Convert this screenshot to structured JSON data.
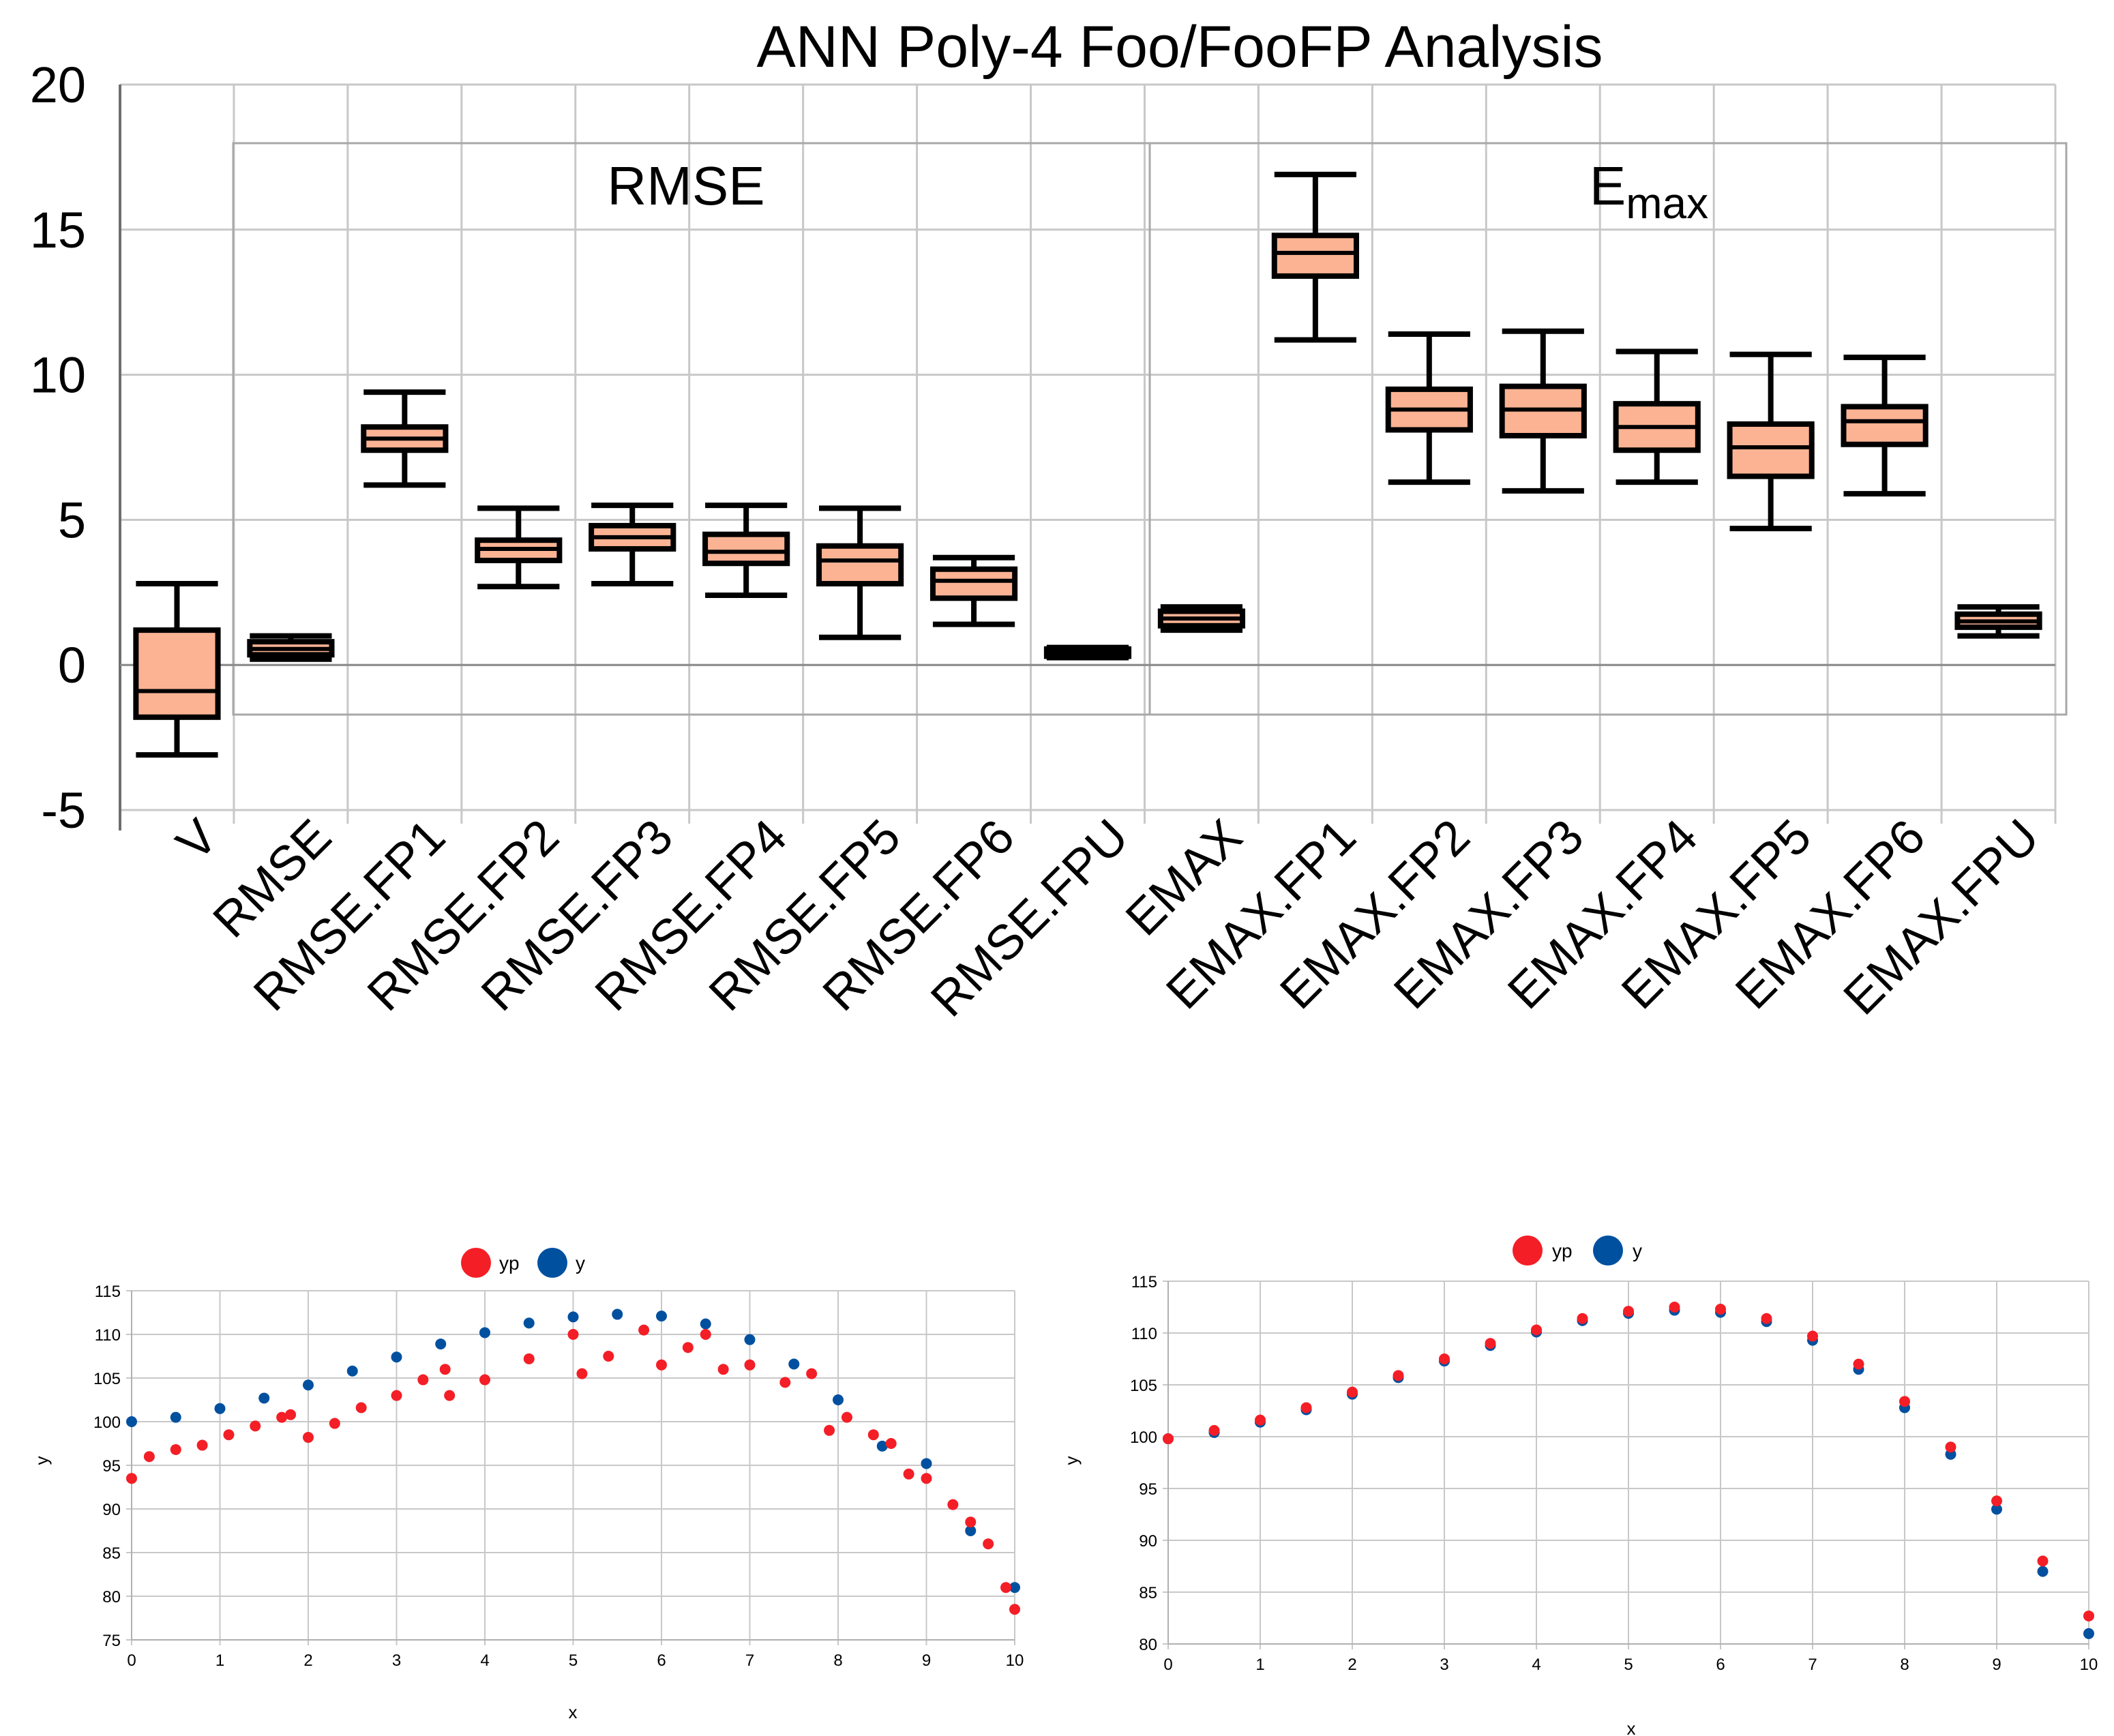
{
  "chart_data": [
    {
      "type": "box",
      "title": "ANN Poly-4 Foo/FooFP Analysis",
      "ylim": [
        -5,
        20
      ],
      "yticks": [
        -5,
        0,
        5,
        10,
        15,
        20
      ],
      "groups": [
        {
          "label": "RMSE",
          "sub": ""
        },
        {
          "label": "E",
          "sub": "max"
        }
      ],
      "box_fill": "#fbb394",
      "categories": [
        "V",
        "RMSE",
        "RMSE.FP1",
        "RMSE.FP2",
        "RMSE.FP3",
        "RMSE.FP4",
        "RMSE.FP5",
        "RMSE.FP6",
        "RMSE.FPU",
        "EMAX",
        "EMAX.FP1",
        "EMAX.FP2",
        "EMAX.FP3",
        "EMAX.FP4",
        "EMAX.FP5",
        "EMAX.FP6",
        "EMAX.FPU"
      ],
      "boxes": [
        {
          "min": -3.1,
          "q1": -1.8,
          "median": -0.9,
          "q3": 1.2,
          "max": 2.8
        },
        {
          "min": 0.2,
          "q1": 0.35,
          "median": 0.55,
          "q3": 0.8,
          "max": 1.0
        },
        {
          "min": 6.2,
          "q1": 7.4,
          "median": 7.8,
          "q3": 8.2,
          "max": 9.4
        },
        {
          "min": 2.7,
          "q1": 3.6,
          "median": 4.0,
          "q3": 4.3,
          "max": 5.4
        },
        {
          "min": 2.8,
          "q1": 4.0,
          "median": 4.4,
          "q3": 4.8,
          "max": 5.5
        },
        {
          "min": 2.4,
          "q1": 3.5,
          "median": 3.9,
          "q3": 4.5,
          "max": 5.5
        },
        {
          "min": 0.95,
          "q1": 2.8,
          "median": 3.6,
          "q3": 4.1,
          "max": 5.4
        },
        {
          "min": 1.4,
          "q1": 2.3,
          "median": 2.9,
          "q3": 3.3,
          "max": 3.7
        },
        {
          "min": 0.25,
          "q1": 0.3,
          "median": 0.45,
          "q3": 0.55,
          "max": 0.6
        },
        {
          "min": 1.2,
          "q1": 1.35,
          "median": 1.6,
          "q3": 1.85,
          "max": 2.0
        },
        {
          "min": 11.2,
          "q1": 13.4,
          "median": 14.2,
          "q3": 14.8,
          "max": 16.9
        },
        {
          "min": 6.3,
          "q1": 8.1,
          "median": 8.8,
          "q3": 9.5,
          "max": 11.4
        },
        {
          "min": 6.0,
          "q1": 7.9,
          "median": 8.8,
          "q3": 9.6,
          "max": 11.5
        },
        {
          "min": 6.3,
          "q1": 7.4,
          "median": 8.2,
          "q3": 9.0,
          "max": 10.8
        },
        {
          "min": 4.7,
          "q1": 6.5,
          "median": 7.5,
          "q3": 8.3,
          "max": 10.7
        },
        {
          "min": 5.9,
          "q1": 7.6,
          "median": 8.4,
          "q3": 8.9,
          "max": 10.6
        },
        {
          "min": 1.0,
          "q1": 1.3,
          "median": 1.5,
          "q3": 1.75,
          "max": 2.0
        }
      ]
    },
    {
      "type": "scatter",
      "title": "",
      "xlabel": "x",
      "ylabel": "y",
      "xlim": [
        0,
        10
      ],
      "ylim": [
        75,
        115
      ],
      "xticks": [
        0,
        1,
        2,
        3,
        4,
        5,
        6,
        7,
        8,
        9,
        10
      ],
      "yticks": [
        75,
        80,
        85,
        90,
        95,
        100,
        105,
        110,
        115
      ],
      "legend": [
        {
          "name": "yp",
          "color": "#f41e26"
        },
        {
          "name": "y",
          "color": "#0050a0"
        }
      ],
      "series": [
        {
          "name": "y",
          "color": "#0050a0",
          "x": [
            0,
            0.5,
            1,
            1.5,
            2,
            2.5,
            3,
            3.5,
            4,
            4.5,
            5,
            5.5,
            6,
            6.5,
            7,
            7.5,
            8,
            8.5,
            9,
            9.5,
            10
          ],
          "y": [
            100,
            100.5,
            101.5,
            102.7,
            104.2,
            105.8,
            107.4,
            108.9,
            110.2,
            111.3,
            112,
            112.3,
            112.1,
            111.2,
            109.4,
            106.6,
            102.5,
            97.2,
            95.2,
            87.5,
            81
          ]
        },
        {
          "name": "yp",
          "color": "#f41e26",
          "x": [
            0,
            0.2,
            0.5,
            0.8,
            1.1,
            1.4,
            1.7,
            1.8,
            2,
            2.3,
            2.6,
            3,
            3.3,
            3.55,
            3.6,
            4,
            4.5,
            5,
            5.1,
            5.4,
            5.8,
            6,
            6.3,
            6.5,
            6.7,
            7,
            7.4,
            7.7,
            7.9,
            8.1,
            8.4,
            8.6,
            8.8,
            9,
            9.3,
            9.5,
            9.7,
            9.9,
            10
          ],
          "y": [
            93.5,
            96.0,
            96.8,
            97.3,
            98.5,
            99.5,
            100.5,
            100.8,
            98.2,
            99.8,
            101.6,
            103.0,
            104.8,
            106.0,
            103.0,
            104.8,
            107.2,
            110.0,
            105.5,
            107.5,
            110.5,
            106.5,
            108.5,
            110.0,
            106.0,
            106.5,
            104.5,
            105.5,
            99.0,
            100.5,
            98.5,
            97.5,
            94.0,
            93.5,
            90.5,
            88.5,
            86.0,
            81.0,
            78.5
          ]
        }
      ]
    },
    {
      "type": "scatter",
      "title": "",
      "xlabel": "x",
      "ylabel": "y",
      "xlim": [
        0,
        10
      ],
      "ylim": [
        80,
        115
      ],
      "xticks": [
        0,
        1,
        2,
        3,
        4,
        5,
        6,
        7,
        8,
        9,
        10
      ],
      "yticks": [
        80,
        85,
        90,
        95,
        100,
        105,
        110,
        115
      ],
      "legend": [
        {
          "name": "yp",
          "color": "#f41e26"
        },
        {
          "name": "y",
          "color": "#0050a0"
        }
      ],
      "series": [
        {
          "name": "y",
          "color": "#0050a0",
          "x": [
            0,
            0.5,
            1,
            1.5,
            2,
            2.5,
            3,
            3.5,
            4,
            4.5,
            5,
            5.5,
            6,
            6.5,
            7,
            7.5,
            8,
            8.5,
            9,
            9.5,
            10
          ],
          "y": [
            99.8,
            100.4,
            101.4,
            102.6,
            104.1,
            105.7,
            107.3,
            108.8,
            110.1,
            111.2,
            111.9,
            112.2,
            112.0,
            111.1,
            109.3,
            106.5,
            102.8,
            98.3,
            93.0,
            87.0,
            81.0
          ]
        },
        {
          "name": "yp",
          "color": "#f41e26",
          "x": [
            0,
            0.5,
            1,
            1.5,
            2,
            2.5,
            3,
            3.5,
            4,
            4.5,
            5,
            5.5,
            6,
            6.5,
            7,
            7.5,
            8,
            8.5,
            9,
            9.5,
            10
          ],
          "y": [
            99.8,
            100.6,
            101.6,
            102.8,
            104.3,
            105.9,
            107.5,
            109.0,
            110.3,
            111.4,
            112.1,
            112.5,
            112.3,
            111.4,
            109.7,
            107.0,
            103.4,
            99.0,
            93.8,
            88.0,
            82.7
          ]
        }
      ]
    }
  ]
}
